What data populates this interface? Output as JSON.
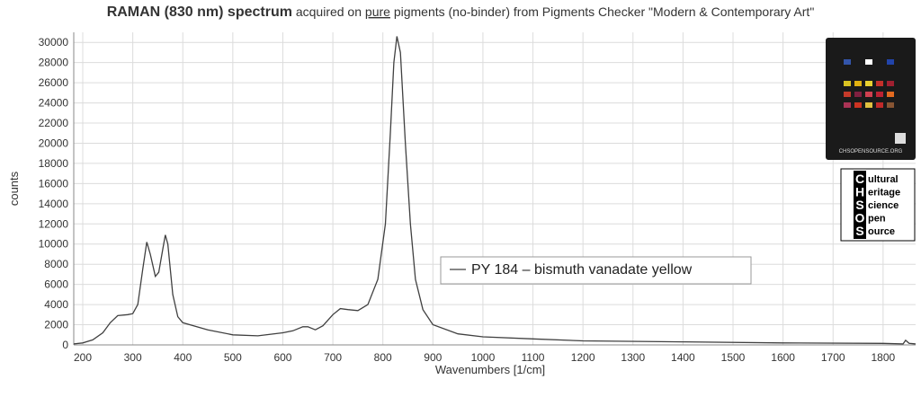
{
  "chart_data": {
    "type": "line",
    "title_parts": [
      "RAMAN (830 nm) spectrum",
      "acquired on",
      "pure",
      "pigments (no-binder) from Pigments Checker \"Modern & Contemporary Art\""
    ],
    "x_label": "Wavenumbers [1/cm]",
    "y_label": "counts",
    "x": [
      182,
      200,
      220,
      240,
      255,
      270,
      290,
      300,
      310,
      320,
      328,
      335,
      345,
      352,
      360,
      365,
      370,
      380,
      390,
      400,
      450,
      500,
      550,
      600,
      620,
      640,
      650,
      665,
      680,
      700,
      715,
      730,
      750,
      770,
      790,
      805,
      815,
      822,
      828,
      835,
      845,
      855,
      865,
      880,
      900,
      950,
      1000,
      1100,
      1200,
      1400,
      1600,
      1800,
      1840,
      1845,
      1852,
      1865
    ],
    "series": [
      {
        "name": "PY 184 – bismuth vanadate yellow",
        "color": "#404040",
        "values": [
          100,
          200,
          500,
          1200,
          2200,
          2900,
          3000,
          3100,
          4000,
          7500,
          10200,
          9000,
          6800,
          7200,
          9500,
          10900,
          10000,
          5000,
          2800,
          2200,
          1500,
          1000,
          900,
          1200,
          1400,
          1800,
          1800,
          1500,
          1900,
          3000,
          3600,
          3500,
          3400,
          4000,
          6500,
          12000,
          21000,
          28000,
          30600,
          29000,
          20000,
          12000,
          6500,
          3500,
          2000,
          1100,
          800,
          600,
          400,
          300,
          200,
          150,
          100,
          450,
          150,
          100
        ]
      }
    ],
    "xlim": [
      182,
      1865
    ],
    "ylim": [
      0,
      31000
    ],
    "xticks": [
      200,
      300,
      400,
      500,
      600,
      700,
      800,
      900,
      1000,
      1100,
      1200,
      1300,
      1400,
      1500,
      1600,
      1700,
      1800
    ],
    "yticks": [
      0,
      2000,
      4000,
      6000,
      8000,
      10000,
      12000,
      14000,
      16000,
      18000,
      20000,
      22000,
      24000,
      26000,
      28000,
      30000
    ],
    "grid": true,
    "logo": {
      "card_text": "CHSOPENSOURCE.ORG",
      "letters": [
        "C",
        "H",
        "S",
        "O",
        "S"
      ],
      "words": [
        "ultural",
        "eritage",
        "cience",
        "pen",
        "ource"
      ]
    }
  }
}
